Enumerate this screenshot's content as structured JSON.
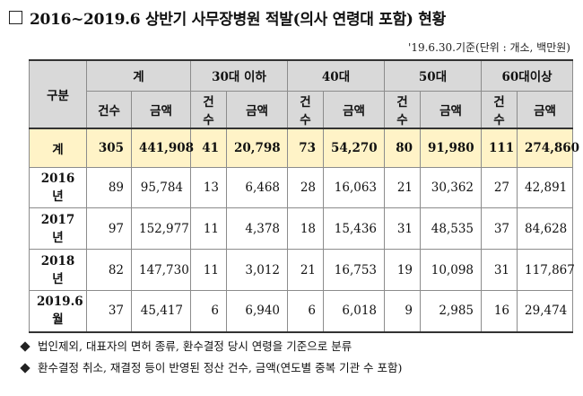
{
  "title": "2016~2019.6 상반기 사무장병원 적발(의사 연령대 포함) 현황",
  "unit_note": "'19.6.30.기준(단위 : 개소, 백만원)",
  "table": {
    "row_header": "구분",
    "groups": [
      "계",
      "30대 이하",
      "40대",
      "50대",
      "60대이상"
    ],
    "sub_headers": [
      "건수",
      "금액"
    ],
    "rows": [
      {
        "label": "계",
        "cells": [
          "305",
          "441,908",
          "41",
          "20,798",
          "73",
          "54,270",
          "80",
          "91,980",
          "111",
          "274,860"
        ]
      },
      {
        "label": "2016년",
        "cells": [
          "89",
          "95,784",
          "13",
          "6,468",
          "28",
          "16,063",
          "21",
          "30,362",
          "27",
          "42,891"
        ]
      },
      {
        "label": "2017년",
        "cells": [
          "97",
          "152,977",
          "11",
          "4,378",
          "18",
          "15,436",
          "31",
          "48,535",
          "37",
          "84,628"
        ]
      },
      {
        "label": "2018년",
        "cells": [
          "82",
          "147,730",
          "11",
          "3,012",
          "21",
          "16,753",
          "19",
          "10,098",
          "31",
          "117,867"
        ]
      },
      {
        "label": "2019.6월",
        "cells": [
          "37",
          "45,417",
          "6",
          "6,940",
          "6",
          "6,018",
          "9",
          "2,985",
          "16",
          "29,474"
        ]
      }
    ]
  },
  "notes": [
    "법인제외, 대표자의 면허 종류, 환수결정 당시 연령을 기준으로 분류",
    "환수결정 취소, 재결정 등이 반영된 정산 건수, 금액(연도별 중복 기관 수 포함)"
  ]
}
